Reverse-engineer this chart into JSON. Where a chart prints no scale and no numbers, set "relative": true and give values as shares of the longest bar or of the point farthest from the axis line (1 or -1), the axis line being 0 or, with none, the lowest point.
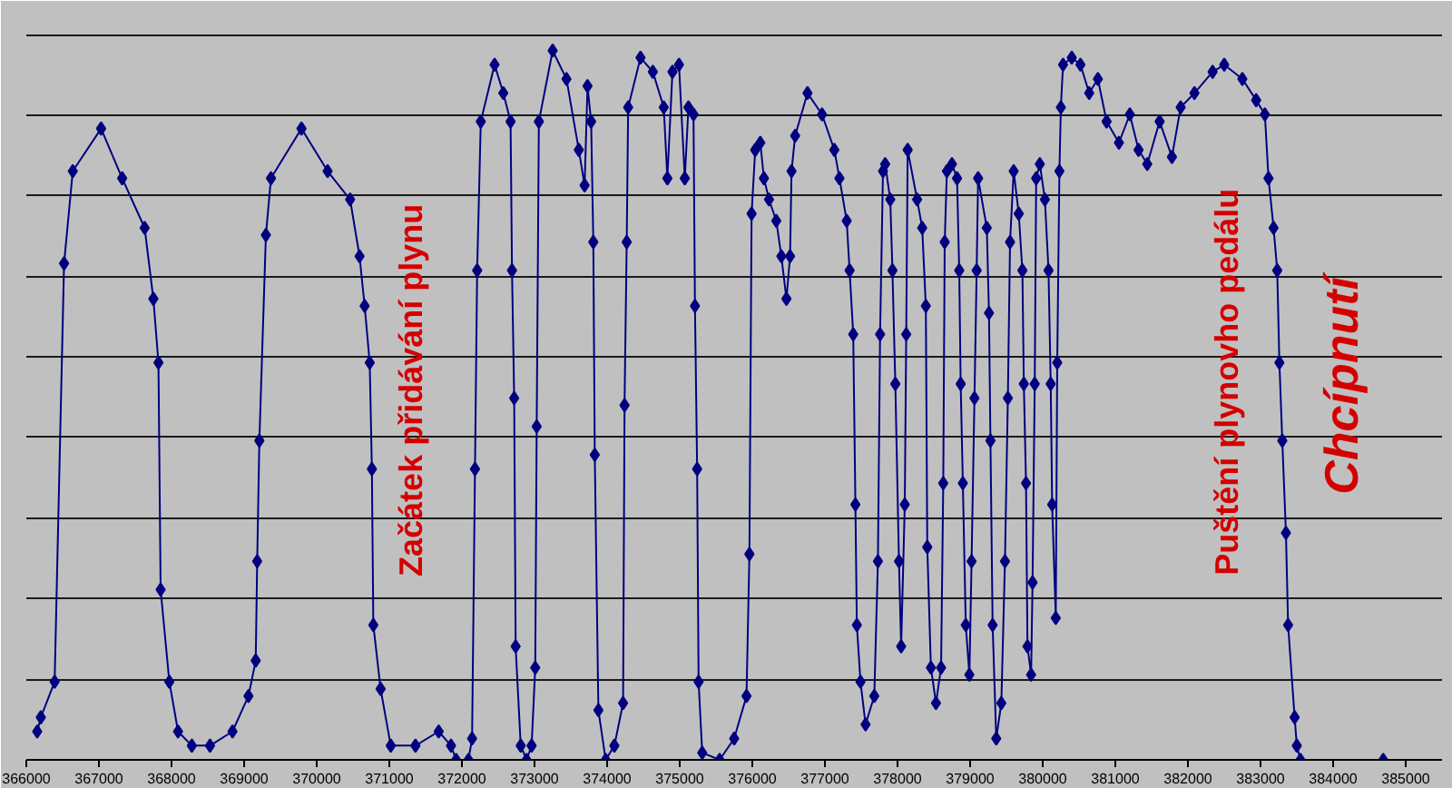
{
  "chart_data": {
    "type": "line",
    "relative": true,
    "color": "#000080",
    "marker": "diamond",
    "line_style": "solid",
    "grid": "y",
    "xlim": [
      366000,
      385500
    ],
    "xticks": [
      366000,
      367000,
      368000,
      369000,
      370000,
      371000,
      372000,
      373000,
      374000,
      375000,
      376000,
      377000,
      378000,
      379000,
      380000,
      381000,
      382000,
      383000,
      384000,
      385000
    ],
    "x": [
      366150,
      366200,
      366390,
      366520,
      366640,
      367030,
      367320,
      367630,
      367750,
      367820,
      367850,
      367970,
      368090,
      368280,
      368530,
      368840,
      369060,
      369160,
      369180,
      369210,
      369300,
      369370,
      369790,
      370150,
      370460,
      370590,
      370660,
      370730,
      370760,
      370780,
      370880,
      371020,
      371360,
      371680,
      371850,
      371920,
      372090,
      372140,
      372180,
      372210,
      372260,
      372450,
      372570,
      372670,
      372690,
      372720,
      372740,
      372810,
      372890,
      372960,
      373010,
      373030,
      373060,
      373250,
      373440,
      373610,
      373690,
      373730,
      373780,
      373810,
      373830,
      373880,
      373980,
      374100,
      374220,
      374240,
      374270,
      374290,
      374460,
      374630,
      374780,
      374830,
      374900,
      374990,
      375070,
      375120,
      375190,
      375210,
      375240,
      375260,
      375310,
      375550,
      375750,
      375920,
      375960,
      375990,
      376040,
      376110,
      376160,
      376230,
      376330,
      376400,
      376470,
      376520,
      376540,
      376590,
      376760,
      376960,
      377130,
      377200,
      377300,
      377340,
      377390,
      377420,
      377440,
      377490,
      377560,
      377680,
      377730,
      377760,
      377800,
      377830,
      377900,
      377930,
      377970,
      378020,
      378050,
      378100,
      378120,
      378140,
      378270,
      378340,
      378390,
      378410,
      378460,
      378530,
      378600,
      378630,
      378650,
      378680,
      378750,
      378820,
      378850,
      378870,
      378900,
      378940,
      378990,
      379020,
      379060,
      379090,
      379110,
      379230,
      379260,
      379280,
      379310,
      379360,
      379430,
      379480,
      379520,
      379550,
      379600,
      379670,
      379720,
      379740,
      379770,
      379790,
      379840,
      379860,
      379890,
      379910,
      379960,
      380030,
      380080,
      380110,
      380130,
      380180,
      380200,
      380230,
      380250,
      380280,
      380400,
      380520,
      380640,
      380760,
      380880,
      381050,
      381200,
      381320,
      381440,
      381610,
      381780,
      381900,
      382090,
      382340,
      382500,
      382750,
      382940,
      383060,
      383110,
      383180,
      383230,
      383260,
      383300,
      383350,
      383380,
      383470,
      383500,
      383550,
      384690
    ],
    "values": [
      0.04,
      0.06,
      0.11,
      0.7,
      0.83,
      0.89,
      0.82,
      0.75,
      0.65,
      0.56,
      0.24,
      0.11,
      0.04,
      0.02,
      0.02,
      0.04,
      0.09,
      0.14,
      0.28,
      0.45,
      0.74,
      0.82,
      0.89,
      0.83,
      0.79,
      0.71,
      0.64,
      0.56,
      0.41,
      0.19,
      0.1,
      0.02,
      0.02,
      0.04,
      0.02,
      0.0,
      0.0,
      0.03,
      0.41,
      0.69,
      0.9,
      0.98,
      0.94,
      0.9,
      0.69,
      0.51,
      0.16,
      0.02,
      0.0,
      0.02,
      0.13,
      0.47,
      0.9,
      1.0,
      0.96,
      0.86,
      0.81,
      0.95,
      0.9,
      0.73,
      0.43,
      0.07,
      0.0,
      0.02,
      0.08,
      0.5,
      0.73,
      0.92,
      0.99,
      0.97,
      0.92,
      0.82,
      0.97,
      0.98,
      0.82,
      0.92,
      0.91,
      0.64,
      0.41,
      0.11,
      0.01,
      0.0,
      0.03,
      0.09,
      0.29,
      0.77,
      0.86,
      0.87,
      0.82,
      0.79,
      0.76,
      0.71,
      0.65,
      0.71,
      0.83,
      0.88,
      0.94,
      0.91,
      0.86,
      0.82,
      0.76,
      0.69,
      0.6,
      0.36,
      0.19,
      0.11,
      0.05,
      0.09,
      0.28,
      0.6,
      0.83,
      0.84,
      0.79,
      0.69,
      0.53,
      0.28,
      0.16,
      0.36,
      0.6,
      0.86,
      0.79,
      0.75,
      0.64,
      0.3,
      0.13,
      0.08,
      0.13,
      0.39,
      0.73,
      0.83,
      0.84,
      0.82,
      0.69,
      0.53,
      0.39,
      0.19,
      0.12,
      0.28,
      0.51,
      0.69,
      0.82,
      0.75,
      0.63,
      0.45,
      0.19,
      0.03,
      0.08,
      0.28,
      0.51,
      0.73,
      0.83,
      0.77,
      0.69,
      0.53,
      0.39,
      0.16,
      0.12,
      0.25,
      0.53,
      0.82,
      0.84,
      0.79,
      0.69,
      0.53,
      0.36,
      0.2,
      0.56,
      0.83,
      0.92,
      0.98,
      0.99,
      0.98,
      0.94,
      0.96,
      0.9,
      0.87,
      0.91,
      0.86,
      0.84,
      0.9,
      0.85,
      0.92,
      0.94,
      0.97,
      0.98,
      0.96,
      0.93,
      0.91,
      0.82,
      0.75,
      0.69,
      0.56,
      0.45,
      0.32,
      0.19,
      0.06,
      0.02,
      0.0,
      0.0
    ],
    "annotations": [
      "Začátek přidávání plynu",
      "Puštění plynovho pedálu",
      "Chcípnutí"
    ]
  }
}
